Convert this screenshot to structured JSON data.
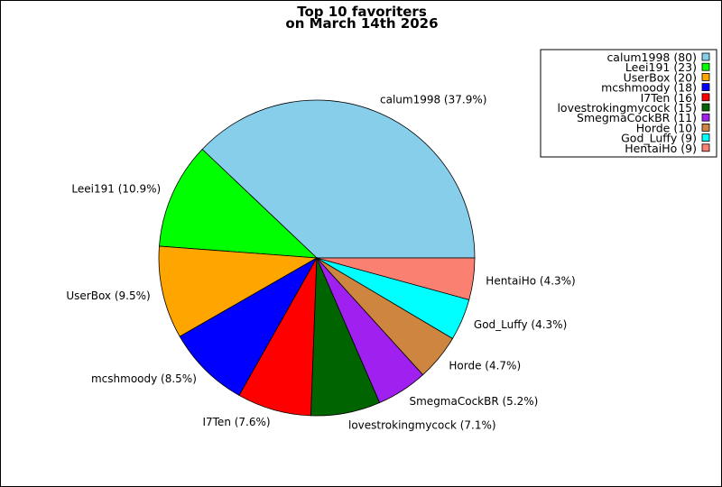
{
  "chart_data": {
    "type": "pie",
    "title": "Top 10 favoriters",
    "subtitle": "on March 14th 2026",
    "legend_position": "top-right",
    "slices": [
      {
        "name": "calum1998",
        "value": 80,
        "percent": "37.9%",
        "color": "#87CEEB"
      },
      {
        "name": "Leei191",
        "value": 23,
        "percent": "10.9%",
        "color": "#00FF00"
      },
      {
        "name": "UserBox",
        "value": 20,
        "percent": "9.5%",
        "color": "#FFA500"
      },
      {
        "name": "mcshmoody",
        "value": 18,
        "percent": "8.5%",
        "color": "#0000FF"
      },
      {
        "name": "I7Ten",
        "value": 16,
        "percent": "7.6%",
        "color": "#FF0000"
      },
      {
        "name": "lovestrokingmycock",
        "value": 15,
        "percent": "7.1%",
        "color": "#006400"
      },
      {
        "name": "SmegmaCockBR",
        "value": 11,
        "percent": "5.2%",
        "color": "#A020F0"
      },
      {
        "name": "Horde",
        "value": 10,
        "percent": "4.7%",
        "color": "#CD853F"
      },
      {
        "name": "God_Luffy",
        "value": 9,
        "percent": "4.3%",
        "color": "#00FFFF"
      },
      {
        "name": "HentaiHo",
        "value": 9,
        "percent": "4.3%",
        "color": "#FA8072"
      }
    ]
  }
}
